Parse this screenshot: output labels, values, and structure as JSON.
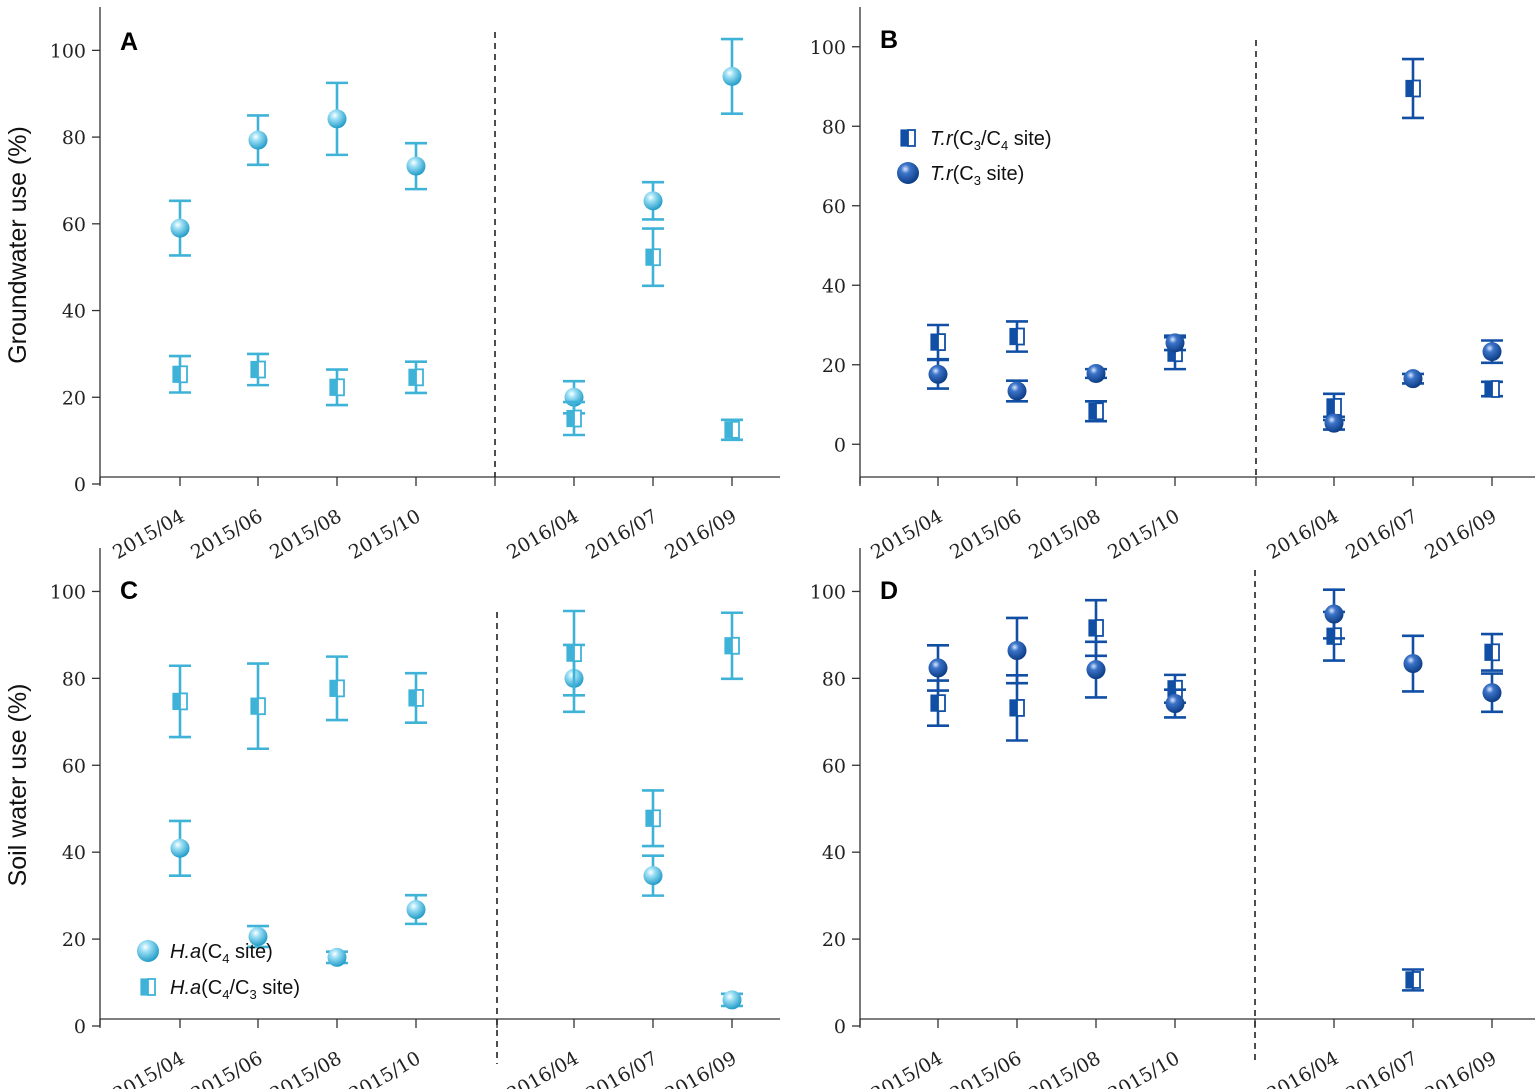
{
  "colors": {
    "light": "#3fb2d8",
    "dark": "#114fa5"
  },
  "y_axis_titles": {
    "top": "Groundwater use (%)",
    "bottom": "Soil water use (%)"
  },
  "chart_data": [
    {
      "panel": "A",
      "type": "scatter",
      "ylabel": "Groundwater use (%)",
      "ylim": [
        0,
        110
      ],
      "yticks": [
        0,
        20,
        40,
        60,
        80,
        100
      ],
      "categories": [
        "2015/04",
        "2015/06",
        "2015/08",
        "2015/10",
        "2016/04",
        "2016/07",
        "2016/09"
      ],
      "series": [
        {
          "name": "H.a(C4 site)",
          "marker": "circle",
          "color": "light",
          "values": [
            59,
            79.3,
            84.2,
            73.3,
            20,
            65.3,
            94
          ],
          "errors": [
            6.3,
            5.7,
            8.3,
            5.3,
            3.7,
            4.3,
            8.6
          ]
        },
        {
          "name": "H.a(C4/C3 site)",
          "marker": "square",
          "color": "light",
          "values": [
            25.3,
            26.4,
            22.3,
            24.6,
            15.1,
            52.3,
            12.5
          ],
          "errors": [
            4.2,
            3.6,
            4.1,
            3.6,
            3.8,
            6.6,
            2.3
          ]
        }
      ]
    },
    {
      "panel": "B",
      "type": "scatter",
      "ylabel": "",
      "ylim": [
        -10,
        110
      ],
      "yticks": [
        0,
        20,
        40,
        60,
        80,
        100
      ],
      "categories": [
        "2015/04",
        "2015/06",
        "2015/08",
        "2015/10",
        "2016/04",
        "2016/07",
        "2016/09"
      ],
      "series": [
        {
          "name": "T.r(C3/C4 site)",
          "marker": "square",
          "color": "dark",
          "values": [
            25.7,
            27.1,
            8.3,
            22.9,
            9.4,
            89.5,
            13.9
          ],
          "errors": [
            4.3,
            3.8,
            2.5,
            4,
            3.3,
            7.4,
            1.8
          ]
        },
        {
          "name": "T.r(C3 site)",
          "marker": "circle",
          "color": "dark",
          "values": [
            17.6,
            13.4,
            17.8,
            25.5,
            5.3,
            16.5,
            23.3
          ],
          "errors": [
            3.6,
            2.6,
            1.1,
            1.8,
            1.6,
            1.2,
            2.8
          ]
        }
      ],
      "legend": [
        {
          "italic": "T.r",
          "text_pre": "(C",
          "sub1": "3",
          "mid": "/C",
          "sub2": "4",
          "post": " site)",
          "marker": "square"
        },
        {
          "italic": "T.r",
          "text_pre": "(C",
          "sub1": "3",
          "mid": "",
          "sub2": "",
          "post": " site)",
          "marker": "circle"
        }
      ]
    },
    {
      "panel": "C",
      "type": "scatter",
      "ylabel": "Soil water use (%)",
      "ylim": [
        0,
        110
      ],
      "yticks": [
        0,
        20,
        40,
        60,
        80,
        100
      ],
      "categories": [
        "2015/04",
        "2015/06",
        "2015/08",
        "2015/10",
        "2016/04",
        "2016/07",
        "2016/09"
      ],
      "series": [
        {
          "name": "H.a(C4 site)",
          "marker": "circle",
          "color": "light",
          "values": [
            40.9,
            20.6,
            15.8,
            26.8,
            80,
            34.6,
            6
          ],
          "errors": [
            6.3,
            2.4,
            1.3,
            3.3,
            7.7,
            4.6,
            1.4
          ]
        },
        {
          "name": "H.a(C4/C3 site)",
          "marker": "square",
          "color": "light",
          "values": [
            74.7,
            73.6,
            77.7,
            75.5,
            85.8,
            47.8,
            87.5
          ],
          "errors": [
            8.2,
            9.8,
            7.3,
            5.7,
            9.7,
            6.4,
            7.6
          ]
        }
      ],
      "legend": [
        {
          "italic": "H.a",
          "text_pre": "(C",
          "sub1": "4",
          "mid": "",
          "sub2": "",
          "post": " site)",
          "marker": "circle"
        },
        {
          "italic": "H.a",
          "text_pre": "(C",
          "sub1": "4",
          "mid": "/C",
          "sub2": "3",
          "post": " site)",
          "marker": "square"
        }
      ]
    },
    {
      "panel": "D",
      "type": "scatter",
      "ylabel": "",
      "ylim": [
        0,
        110
      ],
      "yticks": [
        0,
        20,
        40,
        60,
        80,
        100
      ],
      "categories": [
        "2015/04",
        "2015/06",
        "2015/08",
        "2015/10",
        "2016/04",
        "2016/07",
        "2016/09"
      ],
      "series": [
        {
          "name": "T.r(C3/C4 site)",
          "marker": "square",
          "color": "dark",
          "values": [
            74.3,
            73.2,
            91.6,
            77.6,
            89.7,
            10.6,
            86
          ],
          "errors": [
            5.2,
            7.5,
            6.4,
            3.2,
            5.6,
            2.4,
            4.2
          ]
        },
        {
          "name": "T.r(C3 site)",
          "marker": "circle",
          "color": "dark",
          "values": [
            82.4,
            86.4,
            82,
            74.2,
            94.8,
            83.4,
            76.7
          ],
          "errors": [
            5.2,
            7.5,
            6.4,
            3.2,
            5.6,
            6.4,
            4.4
          ]
        }
      ]
    }
  ]
}
